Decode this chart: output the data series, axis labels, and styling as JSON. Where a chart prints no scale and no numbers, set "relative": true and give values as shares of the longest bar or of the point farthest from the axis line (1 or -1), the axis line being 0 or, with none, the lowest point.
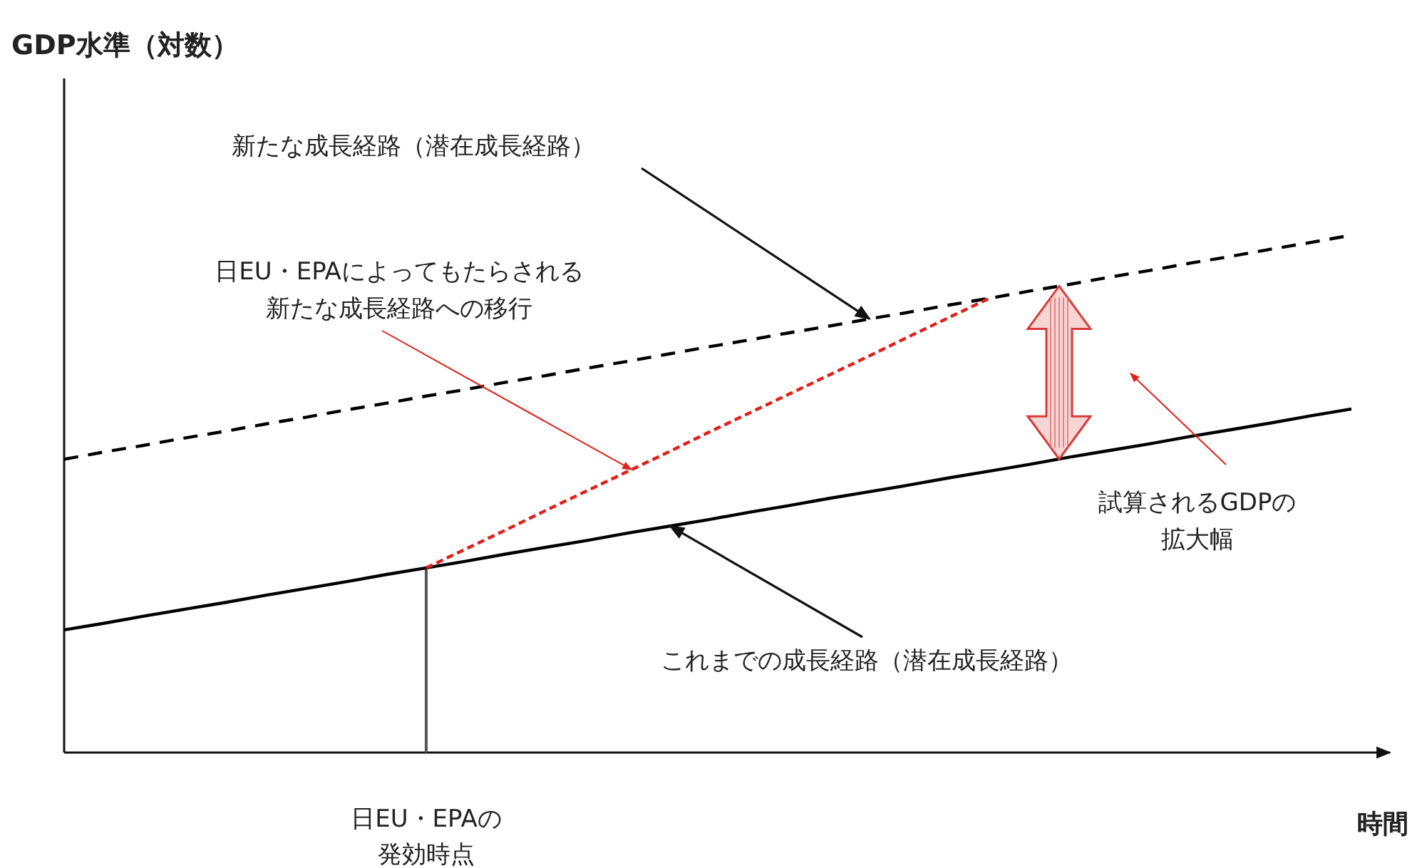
{
  "chart_data": {
    "type": "line",
    "relative": true,
    "xlabel": "時間",
    "categories": [
      null,
      null,
      null,
      null,
      null,
      null,
      null,
      null,
      null,
      null,
      null,
      null,
      null,
      null,
      null,
      null,
      null,
      null,
      null,
      null,
      null,
      null,
      null,
      null,
      null,
      null,
      null,
      null,
      null,
      null,
      null,
      null,
      null
    ],
    "series": [
      {
        "color": "#000000",
        "line_style": "solid",
        "values": [
          0.237,
          0.25,
          0.264,
          0.277,
          0.29,
          0.304,
          0.317,
          0.33,
          0.344,
          0.357,
          0.37,
          0.384,
          0.397,
          0.41,
          0.424,
          0.437,
          0.45,
          0.464,
          0.477,
          0.491,
          0.504,
          0.517,
          0.531,
          0.544,
          0.557,
          0.571,
          0.584,
          0.597,
          0.611,
          0.624,
          0.637,
          0.651,
          0.664
        ]
      },
      {
        "color": "#000000",
        "line_style": "dashed",
        "values": [
          0.567,
          0.581,
          0.594,
          0.608,
          0.621,
          0.635,
          0.648,
          0.662,
          0.675,
          0.689,
          0.702,
          0.716,
          0.729,
          0.743,
          0.756,
          0.77,
          0.784,
          0.797,
          0.811,
          0.824,
          0.838,
          0.851,
          0.865,
          0.878,
          0.892,
          0.905,
          0.919,
          0.932,
          0.946,
          0.959,
          0.973,
          0.986,
          1
        ]
      },
      {
        "color": "#e0201b",
        "line_style": "dotted",
        "values": [
          null,
          null,
          null,
          null,
          null,
          null,
          null,
          null,
          null,
          0.357,
          0.394,
          0.431,
          0.469,
          0.506,
          0.543,
          0.58,
          0.618,
          0.655,
          0.692,
          0.729,
          0.766,
          0.804,
          0.841,
          0.878,
          null,
          null,
          null,
          null,
          null,
          null,
          null,
          null,
          null
        ]
      }
    ],
    "ref_lines": [
      {
        "axis": "x",
        "label": "日EU・EPAの発効時点",
        "color": "#555555"
      }
    ],
    "annotations": [
      "新たな成長経路（潜在成長経路）",
      "日EU・EPAによってもたらされる新たな成長経路への移行",
      "試算されるGDPの拡大幅",
      "これまでの成長経路（潜在成長経路）",
      "GDP水準（対数）"
    ]
  }
}
